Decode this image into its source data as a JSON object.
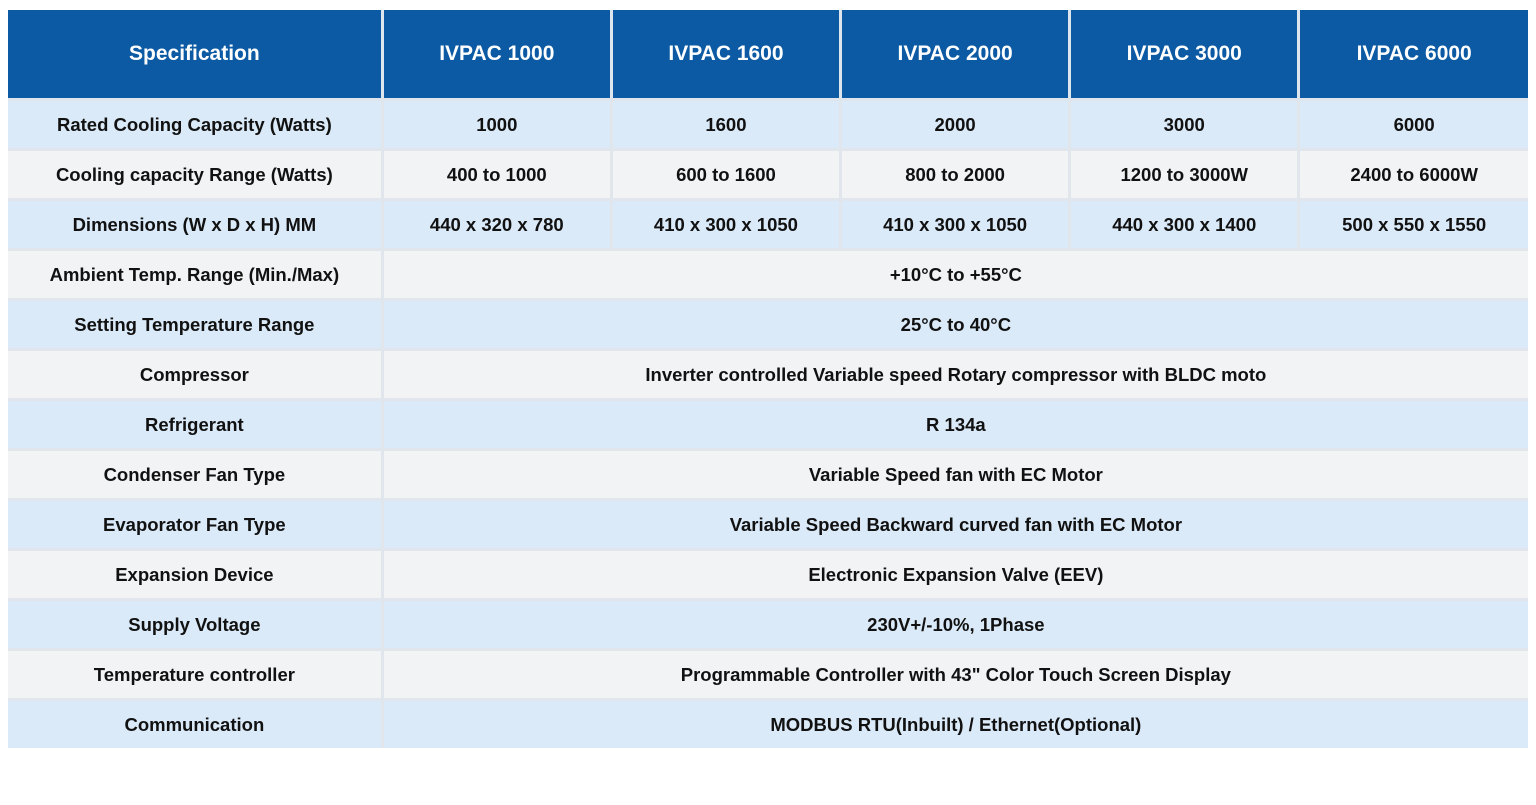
{
  "header": {
    "spec_label": "Specification",
    "models": [
      "IVPAC 1000",
      "IVPAC 1600",
      "IVPAC 2000",
      "IVPAC 3000",
      "IVPAC 6000"
    ]
  },
  "rows": [
    {
      "label": "Rated Cooling Capacity (Watts)",
      "values": [
        "1000",
        "1600",
        "2000",
        "3000",
        "6000"
      ]
    },
    {
      "label": "Cooling capacity Range (Watts)",
      "values": [
        "400 to 1000",
        "600 to 1600",
        "800 to 2000",
        "1200 to 3000W",
        "2400 to 6000W"
      ]
    },
    {
      "label": "Dimensions (W x D x H) MM",
      "values": [
        "440 x 320 x 780",
        "410 x 300 x 1050",
        "410 x 300 x 1050",
        "440 x 300 x 1400",
        "500 x 550 x 1550"
      ]
    },
    {
      "label": "Ambient Temp. Range (Min./Max)",
      "value": "+10°C to +55°C"
    },
    {
      "label": "Setting Temperature Range",
      "value": "25°C to 40°C"
    },
    {
      "label": "Compressor",
      "value": "Inverter controlled Variable speed Rotary compressor with BLDC moto"
    },
    {
      "label": "Refrigerant",
      "value": "R 134a"
    },
    {
      "label": "Condenser Fan Type",
      "value": "Variable Speed fan with EC Motor"
    },
    {
      "label": "Evaporator Fan Type",
      "value": "Variable Speed Backward curved fan with EC Motor"
    },
    {
      "label": "Expansion Device",
      "value": "Electronic Expansion Valve (EEV)"
    },
    {
      "label": "Supply Voltage",
      "value": "230V+/-10%, 1Phase"
    },
    {
      "label": "Temperature controller",
      "value": "Programmable Controller with 43\" Color Touch Screen Display"
    },
    {
      "label": "Communication",
      "value": "MODBUS RTU(Inbuilt) / Ethernet(Optional)"
    }
  ],
  "colors": {
    "header_bg": "#0b5aa3",
    "row_blue": "#dbeaf8",
    "row_grey": "#f2f3f5"
  }
}
